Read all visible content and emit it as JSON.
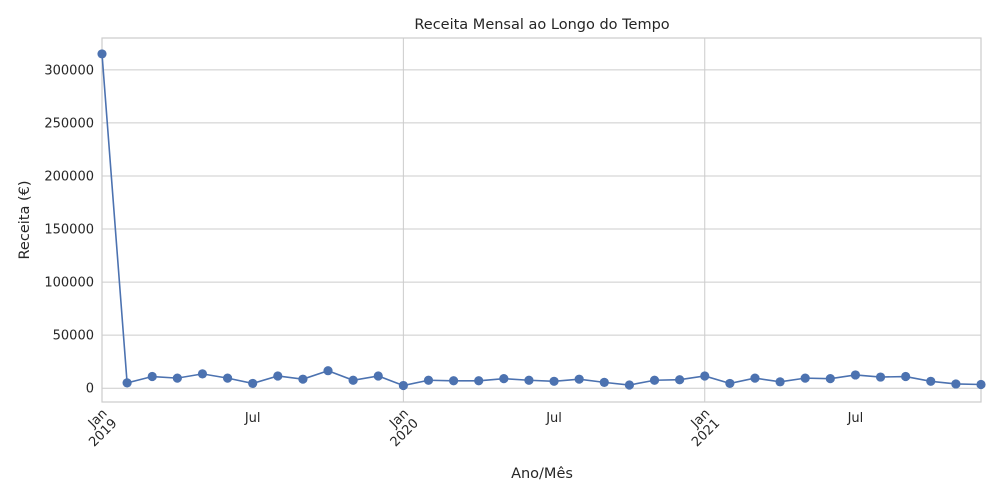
{
  "chart_data": {
    "type": "line",
    "title": "Receita Mensal ao Longo do Tempo",
    "xlabel": "Ano/Mês",
    "ylabel": "Receita (€)",
    "x": [
      "2019-01",
      "2019-02",
      "2019-03",
      "2019-04",
      "2019-05",
      "2019-06",
      "2019-07",
      "2019-08",
      "2019-09",
      "2019-10",
      "2019-11",
      "2019-12",
      "2020-01",
      "2020-02",
      "2020-03",
      "2020-04",
      "2020-05",
      "2020-06",
      "2020-07",
      "2020-08",
      "2020-09",
      "2020-10",
      "2020-11",
      "2020-12",
      "2021-01",
      "2021-02",
      "2021-03",
      "2021-04",
      "2021-05",
      "2021-06",
      "2021-07",
      "2021-08",
      "2021-09",
      "2021-10",
      "2021-11",
      "2021-12"
    ],
    "series": [
      {
        "values": [
          315000,
          5000,
          11000,
          9500,
          13500,
          9500,
          4500,
          11500,
          8500,
          16500,
          7500,
          11500,
          2500,
          7500,
          7000,
          7000,
          9000,
          7500,
          6500,
          8500,
          5500,
          3000,
          7500,
          8000,
          11500,
          4500,
          9500,
          6000,
          9500,
          9000,
          12500,
          10500,
          11000,
          6500,
          4000,
          3500
        ]
      }
    ],
    "xlim": [
      "2019-01",
      "2021-12"
    ],
    "ylim": [
      -13000,
      330000
    ],
    "yticks": [
      0,
      50000,
      100000,
      150000,
      200000,
      250000,
      300000
    ],
    "xticks": [
      {
        "x": "2019-01",
        "label": "Jan",
        "sublabel": "2019",
        "major": true
      },
      {
        "x": "2019-07",
        "label": "Jul",
        "sublabel": "",
        "major": false
      },
      {
        "x": "2020-01",
        "label": "Jan",
        "sublabel": "2020",
        "major": true
      },
      {
        "x": "2020-07",
        "label": "Jul",
        "sublabel": "",
        "major": false
      },
      {
        "x": "2021-01",
        "label": "Jan",
        "sublabel": "2021",
        "major": true
      },
      {
        "x": "2021-07",
        "label": "Jul",
        "sublabel": "",
        "major": false
      }
    ],
    "grid": true,
    "line_color": "#4c72b0",
    "grid_color": "#cccccc"
  }
}
